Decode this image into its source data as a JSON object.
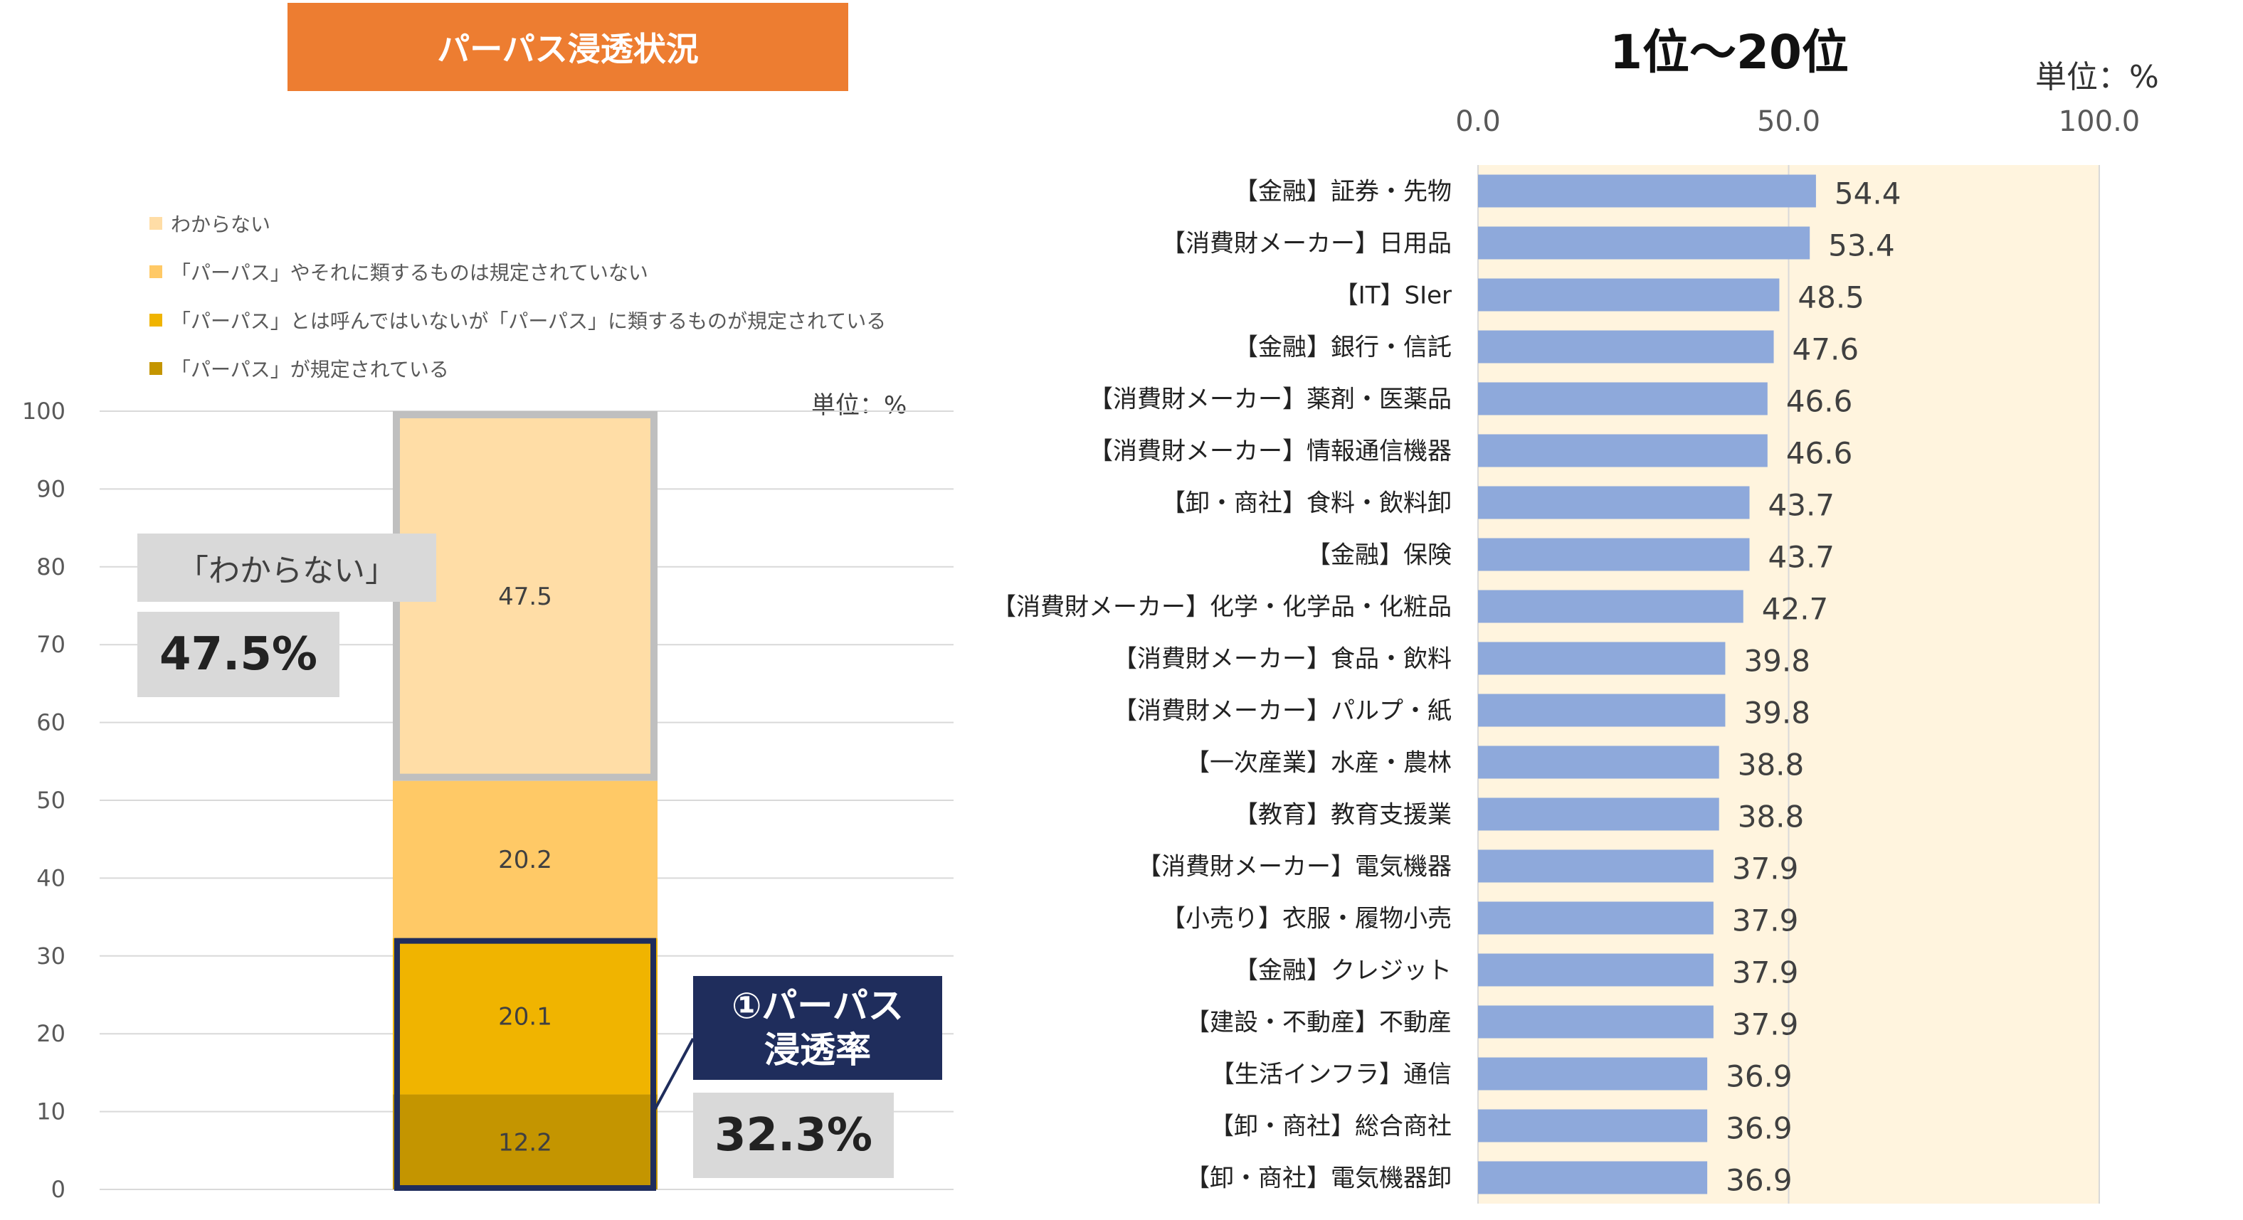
{
  "header": {
    "title": "パーパス浸透状況"
  },
  "left_chart_meta": {
    "legend": [
      "わからない",
      "「パーパス」やそれに類するものは規定されていない",
      "「パーパス」とは呼んではいないが「パーパス」に類するものが規定されている",
      "「パーパス」が規定されている"
    ],
    "unit": "単位：%"
  },
  "callouts": {
    "unknown_label": "「わからない」",
    "unknown_value": "47.5%",
    "rate_label_line1": "①パーパス",
    "rate_label_line2": "浸透率",
    "rate_value": "32.3%"
  },
  "right_chart_meta": {
    "title": "1位～20位",
    "unit": "単位：%"
  },
  "colors": {
    "title_bg": "#ED7D31",
    "seg_unknown": "#FFDDA6",
    "seg_not_defined": "#FFC966",
    "seg_similar": "#F0B400",
    "seg_defined": "#C49500",
    "bar_blue": "#8EA9DB",
    "right_bg": "#FFF4DE",
    "navy": "#1F2D5C"
  },
  "chart_data": [
    {
      "type": "bar",
      "stacked": true,
      "title": "",
      "ylim": [
        0,
        100
      ],
      "yticks": [
        0,
        10,
        20,
        30,
        40,
        50,
        60,
        70,
        80,
        90,
        100
      ],
      "categories": [
        ""
      ],
      "series": [
        {
          "name": "「パーパス」が規定されている",
          "values": [
            12.2
          ]
        },
        {
          "name": "「パーパス」とは呼んではいないが「パーパス」に類するものが規定されている",
          "values": [
            20.1
          ]
        },
        {
          "name": "「パーパス」やそれに類するものは規定されていない",
          "values": [
            20.2
          ]
        },
        {
          "name": "わからない",
          "values": [
            47.5
          ]
        }
      ]
    },
    {
      "type": "bar",
      "orientation": "horizontal",
      "title": "1位～20位",
      "xlim": [
        0,
        100
      ],
      "xticks": [
        "0.0",
        "50.0",
        "100.0"
      ],
      "categories": [
        "【金融】証券・先物",
        "【消費財メーカー】日用品",
        "【IT】SIer",
        "【金融】銀行・信託",
        "【消費財メーカー】薬剤・医薬品",
        "【消費財メーカー】情報通信機器",
        "【卸・商社】食料・飲料卸",
        "【金融】保険",
        "【消費財メーカー】化学・化学品・化粧品",
        "【消費財メーカー】食品・飲料",
        "【消費財メーカー】パルプ・紙",
        "【一次産業】水産・農林",
        "【教育】教育支援業",
        "【消費財メーカー】電気機器",
        "【小売り】衣服・履物小売",
        "【金融】クレジット",
        "【建設・不動産】不動産",
        "【生活インフラ】通信",
        "【卸・商社】総合商社",
        "【卸・商社】電気機器卸"
      ],
      "values": [
        54.4,
        53.4,
        48.5,
        47.6,
        46.6,
        46.6,
        43.7,
        43.7,
        42.7,
        39.8,
        39.8,
        38.8,
        38.8,
        37.9,
        37.9,
        37.9,
        37.9,
        36.9,
        36.9,
        36.9
      ]
    }
  ]
}
